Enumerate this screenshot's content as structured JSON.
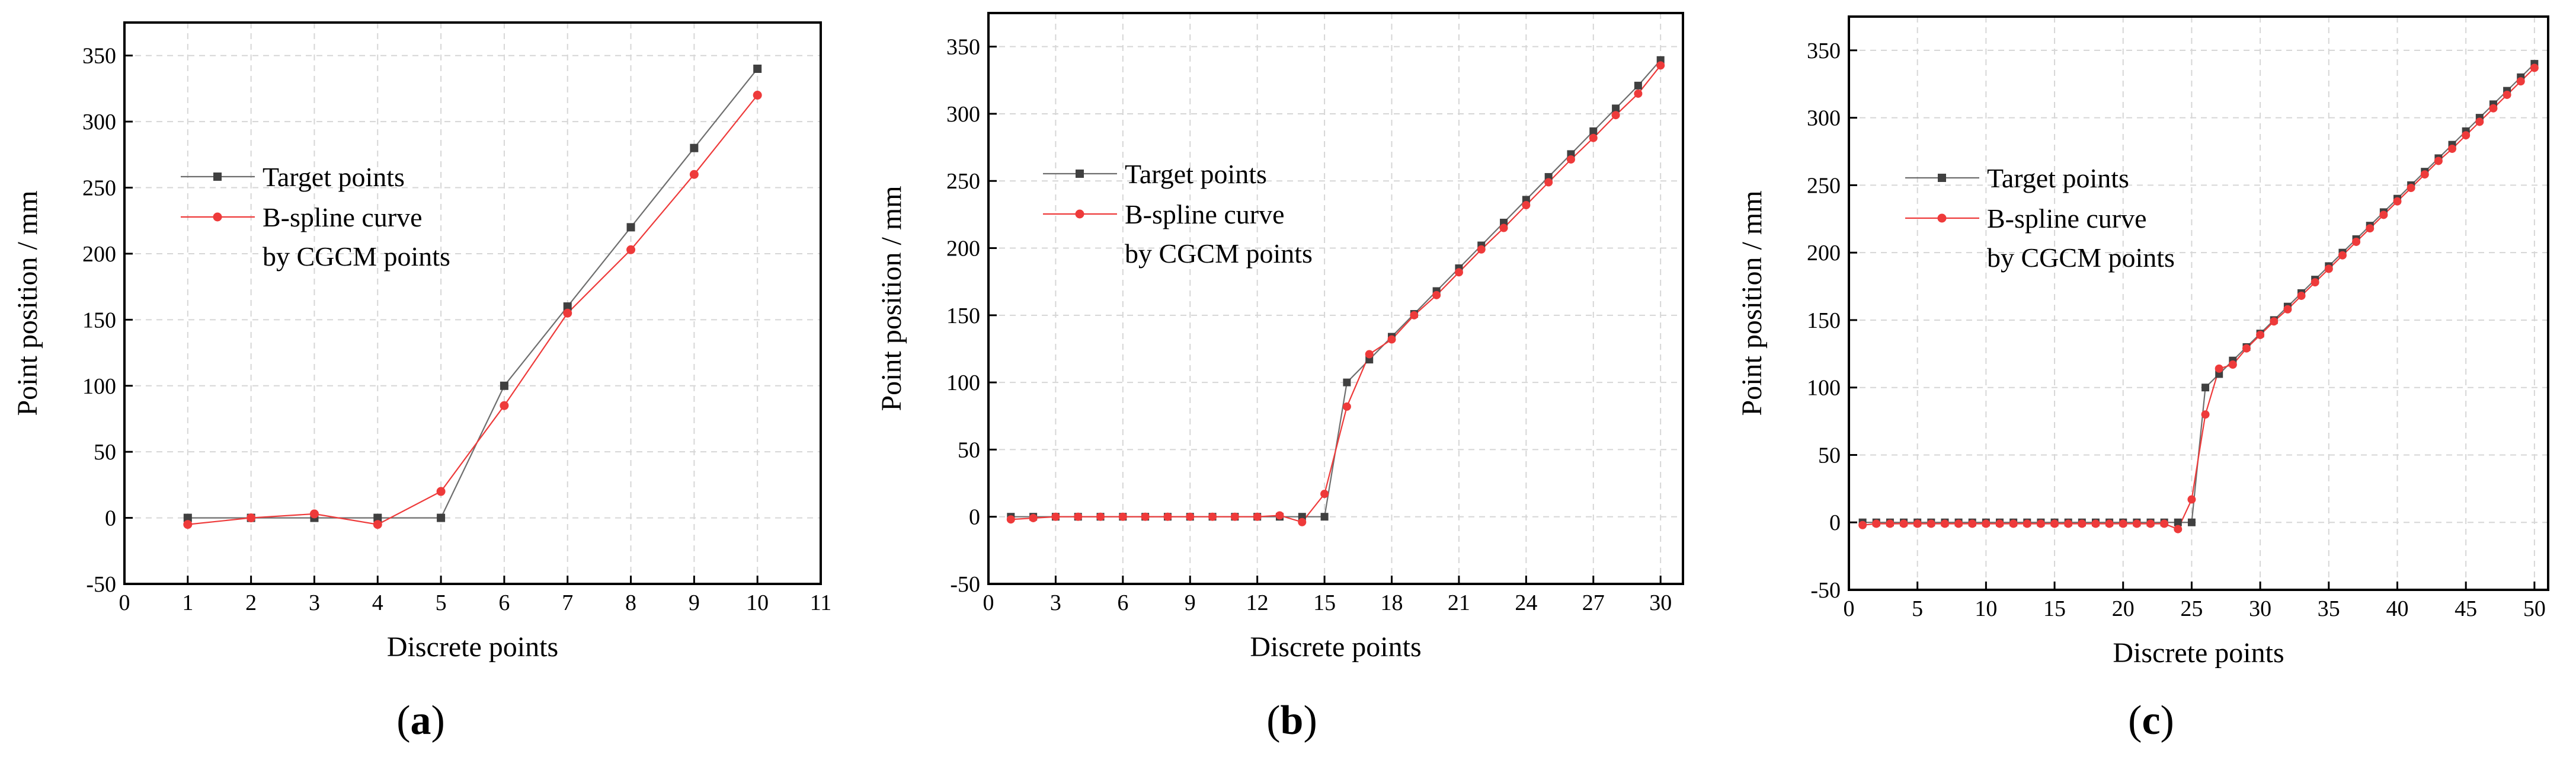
{
  "figure": {
    "xlabel": "Discrete points",
    "ylabel": "Point position / mm",
    "legend": {
      "series_a": "Target points",
      "series_b_line1": "B-spline curve",
      "series_b_line2": "by CGCM points"
    },
    "colors": {
      "target": "#404040",
      "target_line": "#6e6e6e",
      "bspline": "#ee3a3a"
    }
  },
  "chart_data": [
    {
      "type": "line",
      "panel_label": "a",
      "title": "",
      "xlabel": "Discrete points",
      "ylabel": "Point position / mm",
      "xlim": [
        0,
        11
      ],
      "ylim": [
        -50,
        375
      ],
      "xticks": [
        0,
        1,
        2,
        3,
        4,
        5,
        6,
        7,
        8,
        9,
        10,
        11
      ],
      "yticks": [
        -50,
        0,
        50,
        100,
        150,
        200,
        250,
        300,
        350
      ],
      "legend_position": "upper-left",
      "series": [
        {
          "name": "Target points",
          "marker": "square",
          "x": [
            1,
            2,
            3,
            4,
            5,
            6,
            7,
            8,
            9,
            10
          ],
          "y": [
            0,
            0,
            0,
            0,
            0,
            100,
            160,
            220,
            280,
            340
          ]
        },
        {
          "name": "B-spline curve by CGCM points",
          "marker": "circle",
          "x": [
            1,
            2,
            3,
            4,
            5,
            6,
            7,
            8,
            9,
            10
          ],
          "y": [
            -5,
            0,
            3,
            -5,
            20,
            85,
            155,
            203,
            260,
            320
          ]
        }
      ]
    },
    {
      "type": "line",
      "panel_label": "b",
      "title": "",
      "xlabel": "Discrete points",
      "ylabel": "Point position / mm",
      "xlim": [
        0,
        31
      ],
      "ylim": [
        -50,
        375
      ],
      "xticks": [
        0,
        3,
        6,
        9,
        12,
        15,
        18,
        21,
        24,
        27,
        30
      ],
      "yticks": [
        -50,
        0,
        50,
        100,
        150,
        200,
        250,
        300,
        350
      ],
      "legend_position": "upper-left",
      "series": [
        {
          "name": "Target points",
          "marker": "square",
          "x": [
            1,
            2,
            3,
            4,
            5,
            6,
            7,
            8,
            9,
            10,
            11,
            12,
            13,
            14,
            15,
            16,
            17,
            18,
            19,
            20,
            21,
            22,
            23,
            24,
            25,
            26,
            27,
            28,
            29,
            30
          ],
          "y": [
            0,
            0,
            0,
            0,
            0,
            0,
            0,
            0,
            0,
            0,
            0,
            0,
            0,
            0,
            0,
            100,
            117,
            134,
            151,
            168,
            185,
            202,
            219,
            236,
            253,
            270,
            287,
            304,
            321,
            340
          ]
        },
        {
          "name": "B-spline curve by CGCM points",
          "marker": "circle",
          "x": [
            1,
            2,
            3,
            4,
            5,
            6,
            7,
            8,
            9,
            10,
            11,
            12,
            13,
            14,
            15,
            16,
            17,
            18,
            19,
            20,
            21,
            22,
            23,
            24,
            25,
            26,
            27,
            28,
            29,
            30
          ],
          "y": [
            -2,
            -1,
            0,
            0,
            0,
            0,
            0,
            0,
            0,
            0,
            0,
            0,
            1,
            -4,
            17,
            82,
            121,
            132,
            150,
            165,
            182,
            199,
            215,
            232,
            249,
            266,
            282,
            299,
            315,
            336
          ]
        }
      ]
    },
    {
      "type": "line",
      "panel_label": "c",
      "title": "",
      "xlabel": "Discrete points",
      "ylabel": "Point position / mm",
      "xlim": [
        0,
        51
      ],
      "ylim": [
        -50,
        375
      ],
      "xticks": [
        0,
        5,
        10,
        15,
        20,
        25,
        30,
        35,
        40,
        45,
        50
      ],
      "yticks": [
        -50,
        0,
        50,
        100,
        150,
        200,
        250,
        300,
        350
      ],
      "legend_position": "upper-left",
      "series": [
        {
          "name": "Target points",
          "marker": "square",
          "x": [
            1,
            2,
            3,
            4,
            5,
            6,
            7,
            8,
            9,
            10,
            11,
            12,
            13,
            14,
            15,
            16,
            17,
            18,
            19,
            20,
            21,
            22,
            23,
            24,
            25,
            26,
            27,
            28,
            29,
            30,
            31,
            32,
            33,
            34,
            35,
            36,
            37,
            38,
            39,
            40,
            41,
            42,
            43,
            44,
            45,
            46,
            47,
            48,
            49,
            50
          ],
          "y": [
            0,
            0,
            0,
            0,
            0,
            0,
            0,
            0,
            0,
            0,
            0,
            0,
            0,
            0,
            0,
            0,
            0,
            0,
            0,
            0,
            0,
            0,
            0,
            0,
            0,
            100,
            110,
            120,
            130,
            140,
            150,
            160,
            170,
            180,
            190,
            200,
            210,
            220,
            230,
            240,
            250,
            260,
            270,
            280,
            290,
            300,
            310,
            320,
            330,
            340
          ]
        },
        {
          "name": "B-spline curve by CGCM points",
          "marker": "circle",
          "x": [
            1,
            2,
            3,
            4,
            5,
            6,
            7,
            8,
            9,
            10,
            11,
            12,
            13,
            14,
            15,
            16,
            17,
            18,
            19,
            20,
            21,
            22,
            23,
            24,
            25,
            26,
            27,
            28,
            29,
            30,
            31,
            32,
            33,
            34,
            35,
            36,
            37,
            38,
            39,
            40,
            41,
            42,
            43,
            44,
            45,
            46,
            47,
            48,
            49,
            50
          ],
          "y": [
            -2,
            -1,
            -1,
            -1,
            -1,
            -1,
            -1,
            -1,
            -1,
            -1,
            -1,
            -1,
            -1,
            -1,
            -1,
            -1,
            -1,
            -1,
            -1,
            -1,
            -1,
            -1,
            -1,
            -5,
            17,
            80,
            114,
            117,
            129,
            139,
            149,
            158,
            168,
            178,
            188,
            198,
            208,
            218,
            228,
            238,
            248,
            258,
            268,
            277,
            287,
            297,
            307,
            317,
            327,
            337
          ]
        }
      ]
    }
  ]
}
